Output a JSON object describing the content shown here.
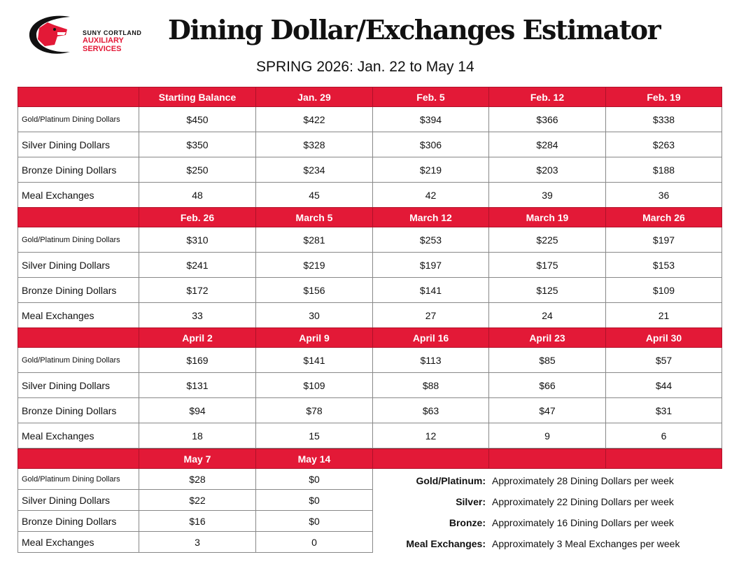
{
  "header": {
    "logo_line1": "SUNY CORTLAND",
    "logo_line2": "AUXILIARY SERVICES",
    "title": "Dining Dollar/Exchanges Estimator",
    "subtitle": "SPRING 2026: Jan. 22 to May 14"
  },
  "colors": {
    "accent": "#e31937"
  },
  "row_labels": [
    "Gold/Platinum Dining Dollars",
    "Silver Dining Dollars",
    "Bronze Dining Dollars",
    "Meal Exchanges"
  ],
  "blocks": [
    {
      "dates": [
        "Starting Balance",
        "Jan. 29",
        "Feb. 5",
        "Feb. 12",
        "Feb. 19"
      ],
      "rows": [
        [
          "$450",
          "$422",
          "$394",
          "$366",
          "$338"
        ],
        [
          "$350",
          "$328",
          "$306",
          "$284",
          "$263"
        ],
        [
          "$250",
          "$234",
          "$219",
          "$203",
          "$188"
        ],
        [
          "48",
          "45",
          "42",
          "39",
          "36"
        ]
      ]
    },
    {
      "dates": [
        "Feb. 26",
        "March 5",
        "March 12",
        "March 19",
        "March 26"
      ],
      "rows": [
        [
          "$310",
          "$281",
          "$253",
          "$225",
          "$197"
        ],
        [
          "$241",
          "$219",
          "$197",
          "$175",
          "$153"
        ],
        [
          "$172",
          "$156",
          "$141",
          "$125",
          "$109"
        ],
        [
          "33",
          "30",
          "27",
          "24",
          "21"
        ]
      ]
    },
    {
      "dates": [
        "April 2",
        "April 9",
        "April 16",
        "April 23",
        "April 30"
      ],
      "rows": [
        [
          "$169",
          "$141",
          "$113",
          "$85",
          "$57"
        ],
        [
          "$131",
          "$109",
          "$88",
          "$66",
          "$44"
        ],
        [
          "$94",
          "$78",
          "$63",
          "$47",
          "$31"
        ],
        [
          "18",
          "15",
          "12",
          "9",
          "6"
        ]
      ]
    },
    {
      "dates": [
        "May 7",
        "May 14",
        "",
        "",
        ""
      ],
      "rows": [
        [
          "$28",
          "$0"
        ],
        [
          "$22",
          "$0"
        ],
        [
          "$16",
          "$0"
        ],
        [
          "3",
          "0"
        ]
      ]
    }
  ],
  "legend": [
    {
      "key": "Gold/Platinum:",
      "value": "Approximately 28 Dining Dollars per week"
    },
    {
      "key": "Silver:",
      "value": "Approximately 22 Dining Dollars per week"
    },
    {
      "key": "Bronze:",
      "value": "Approximately 16 Dining Dollars per week"
    },
    {
      "key": "Meal Exchanges:",
      "value": "Approximately 3 Meal Exchanges per week"
    }
  ]
}
